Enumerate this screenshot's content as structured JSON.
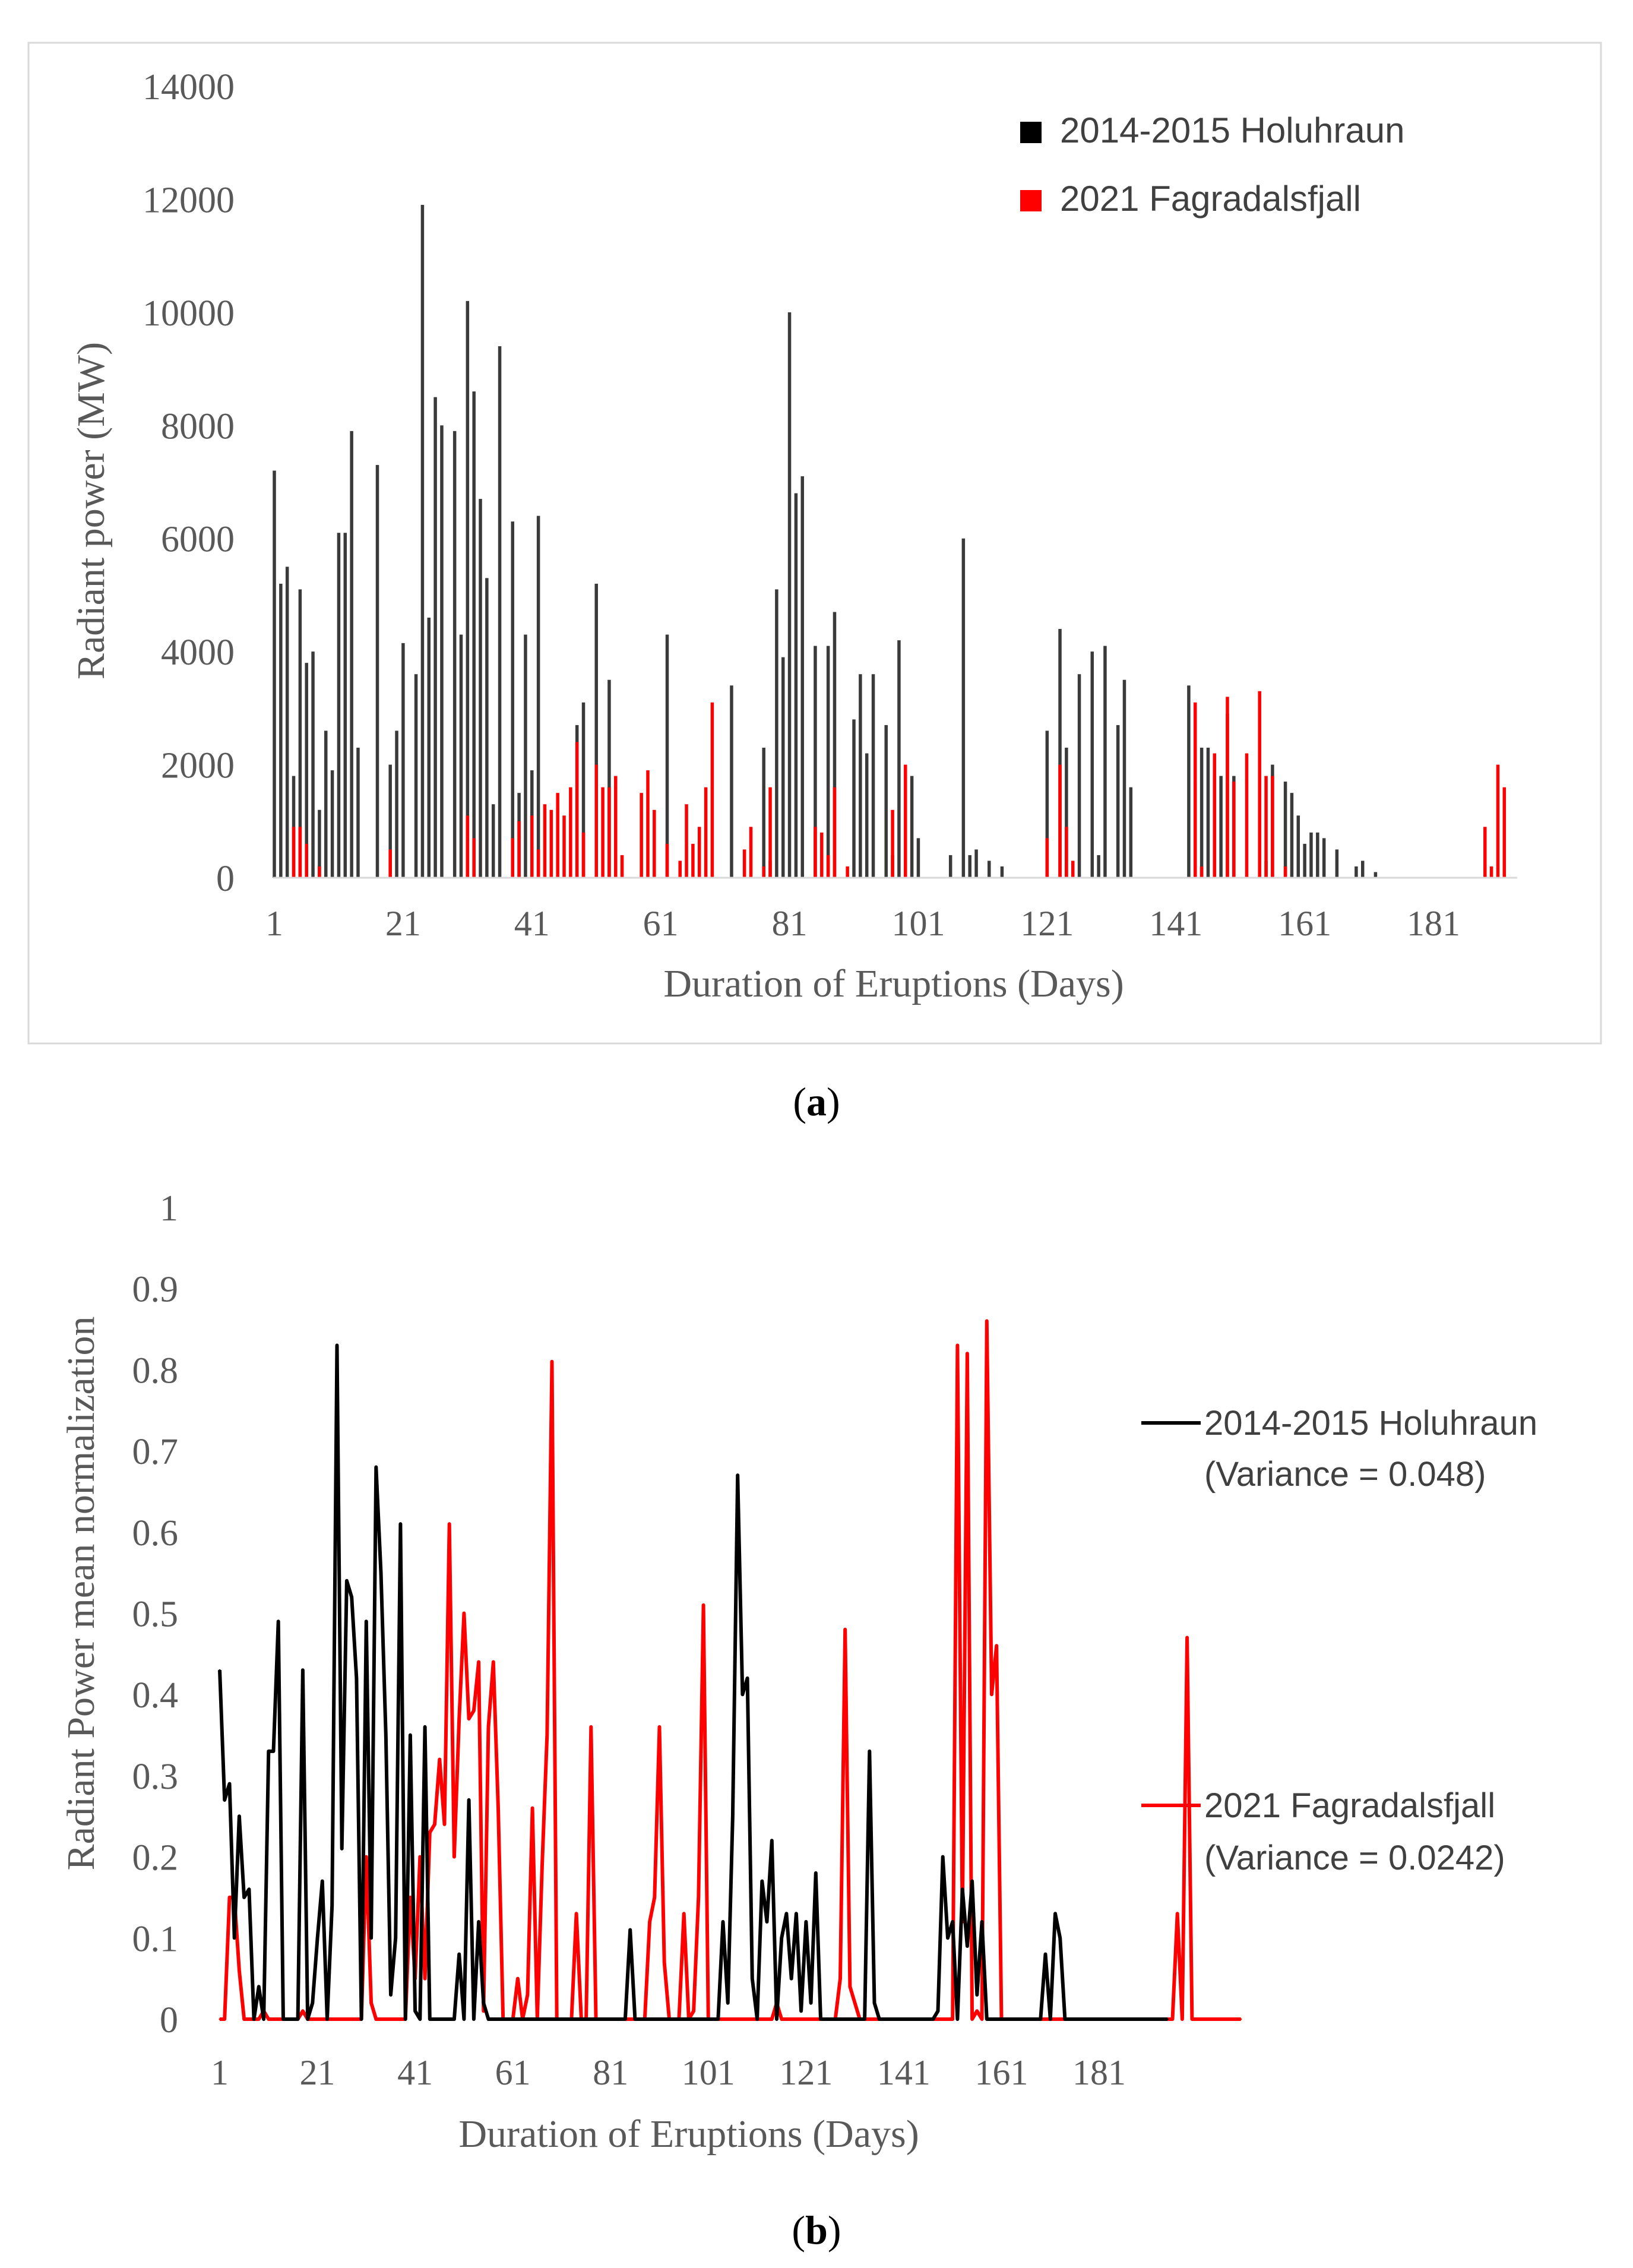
{
  "panel_labels": {
    "a": "a",
    "b": "b"
  },
  "colors": {
    "holuhraun_bar": "#3a3a3a",
    "holuhraun_line": "#000000",
    "fagradalsfjall": "#ff0000",
    "frame": "#d9d9d9"
  },
  "chart_data": [
    {
      "type": "bar",
      "title": "",
      "xlabel": "Duration of Eruptions (Days)",
      "ylabel": "Radiant  power (MW)",
      "ylim": [
        0,
        14000
      ],
      "yticks": [
        "0",
        "2000",
        "4000",
        "6000",
        "8000",
        "10000",
        "12000",
        "14000"
      ],
      "xticks": [
        "1",
        "21",
        "41",
        "61",
        "81",
        "101",
        "121",
        "141",
        "161",
        "181"
      ],
      "legend_position": "top-right",
      "x_days": 193,
      "series": [
        {
          "name": "2014-2015 Holuhraun",
          "values": [
            7200,
            5200,
            5500,
            1800,
            5100,
            3800,
            4000,
            1200,
            2600,
            1900,
            6100,
            6100,
            7900,
            2300,
            0,
            0,
            7300,
            0,
            2000,
            2600,
            4150,
            0,
            3600,
            11900,
            4600,
            8500,
            8000,
            0,
            7900,
            4300,
            10200,
            8600,
            6700,
            5300,
            1300,
            9400,
            0,
            6300,
            1500,
            4300,
            1900,
            6400,
            0,
            0,
            0,
            0,
            0,
            2700,
            3100,
            0,
            5200,
            0,
            3500,
            0,
            0,
            0,
            0,
            0,
            0,
            0,
            0,
            4300,
            0,
            0,
            0,
            0,
            0,
            0,
            0,
            0,
            0,
            3400,
            0,
            0,
            0,
            0,
            2300,
            300,
            5100,
            3900,
            10000,
            6800,
            7100,
            0,
            4100,
            0,
            4100,
            4700,
            0,
            0,
            2800,
            3600,
            2200,
            3600,
            0,
            2700,
            400,
            4200,
            300,
            1800,
            700,
            0,
            0,
            0,
            0,
            400,
            0,
            6000,
            400,
            500,
            0,
            300,
            0,
            200,
            0,
            0,
            0,
            0,
            0,
            0,
            2600,
            0,
            4400,
            2300,
            0,
            3600,
            0,
            4000,
            400,
            4100,
            0,
            2700,
            3500,
            1600,
            0,
            0,
            0,
            0,
            0,
            0,
            0,
            0,
            3400,
            1700,
            2300,
            2300,
            1800,
            1800,
            2900,
            1800,
            0,
            0,
            0,
            0,
            300,
            2000,
            0,
            1700,
            1500,
            1100,
            600,
            800,
            800,
            700,
            0,
            500,
            0,
            0,
            200,
            300,
            0,
            100,
            0,
            0,
            0,
            0,
            0,
            0,
            0,
            0,
            0,
            0,
            0,
            0,
            0,
            0,
            0,
            0,
            0,
            0,
            0
          ]
        },
        {
          "name": "2021 Fagradalsfjall",
          "values": [
            0,
            0,
            0,
            900,
            900,
            600,
            0,
            200,
            0,
            0,
            0,
            0,
            0,
            0,
            0,
            0,
            0,
            0,
            500,
            0,
            0,
            0,
            0,
            0,
            0,
            0,
            0,
            0,
            0,
            0,
            1100,
            700,
            0,
            0,
            0,
            0,
            0,
            700,
            1000,
            0,
            1100,
            500,
            1300,
            1200,
            1500,
            1100,
            1600,
            2400,
            800,
            0,
            2000,
            1600,
            1600,
            1800,
            400,
            0,
            0,
            1500,
            1900,
            1200,
            0,
            600,
            0,
            300,
            1300,
            600,
            900,
            1600,
            3100,
            0,
            0,
            0,
            0,
            500,
            900,
            0,
            200,
            1600,
            0,
            0,
            0,
            0,
            0,
            0,
            900,
            800,
            400,
            1600,
            0,
            200,
            0,
            0,
            0,
            0,
            0,
            0,
            1200,
            0,
            2000,
            0,
            0,
            0,
            0,
            0,
            0,
            0,
            0,
            0,
            0,
            0,
            0,
            0,
            0,
            0,
            0,
            0,
            0,
            0,
            0,
            0,
            700,
            0,
            2000,
            900,
            300,
            0,
            0,
            0,
            0,
            0,
            0,
            0,
            0,
            0,
            0,
            0,
            0,
            0,
            0,
            0,
            0,
            0,
            0,
            3100,
            200,
            0,
            2200,
            0,
            3200,
            1700,
            0,
            2200,
            0,
            3300,
            1800,
            1800,
            0,
            200,
            0,
            0,
            0,
            0,
            0,
            0,
            0,
            0,
            0,
            0,
            0,
            0,
            0,
            0,
            0,
            0,
            0,
            0,
            0,
            0,
            0,
            0,
            0,
            0,
            0,
            0,
            0,
            0,
            0,
            0,
            900,
            200,
            2000,
            1600,
            0,
            0,
            0,
            0,
            0,
            0,
            0,
            0,
            0,
            0
          ]
        }
      ]
    },
    {
      "type": "line",
      "title": "",
      "xlabel": "Duration of Eruptions (Days)",
      "ylabel": "Radiant  Power mean normalization",
      "ylim": [
        0,
        1
      ],
      "yticks": [
        "0",
        "0.1",
        "0.2",
        "0.3",
        "0.4",
        "0.5",
        "0.6",
        "0.7",
        "0.8",
        "0.9",
        "1"
      ],
      "xticks": [
        "1",
        "21",
        "41",
        "61",
        "81",
        "101",
        "121",
        "141",
        "161",
        "181"
      ],
      "legend_position": "right",
      "x_days": 193,
      "series": [
        {
          "name": "2014-2015 Holuhraun",
          "variance_label": "(Variance = 0.048)",
          "values": [
            0.43,
            0.27,
            0.29,
            0.1,
            0.25,
            0.15,
            0.16,
            0,
            0.04,
            0,
            0.33,
            0.33,
            0.49,
            0,
            0,
            0,
            0,
            0.43,
            0,
            0.02,
            0.1,
            0.17,
            0,
            0.14,
            0.83,
            0.21,
            0.54,
            0.52,
            0.42,
            0,
            0.49,
            0.1,
            0.68,
            0.55,
            0.35,
            0.03,
            0.1,
            0.61,
            0,
            0.35,
            0.01,
            0,
            0.36,
            0,
            0,
            0,
            0,
            0,
            0,
            0.08,
            0,
            0.27,
            0,
            0.12,
            0.02,
            0,
            0,
            0,
            0,
            0,
            0,
            0,
            0,
            0,
            0,
            0,
            0,
            0,
            0,
            0,
            0,
            0,
            0,
            0,
            0,
            0,
            0,
            0,
            0,
            0,
            0,
            0,
            0,
            0,
            0.11,
            0,
            0,
            0,
            0,
            0,
            0,
            0,
            0,
            0,
            0,
            0,
            0,
            0,
            0,
            0,
            0,
            0,
            0,
            0.12,
            0.02,
            0.25,
            0.67,
            0.4,
            0.42,
            0.05,
            0,
            0.17,
            0.12,
            0.22,
            0,
            0.1,
            0.13,
            0.05,
            0.13,
            0.01,
            0.12,
            0.02,
            0.18,
            0,
            0,
            0,
            0,
            0,
            0,
            0,
            0,
            0,
            0,
            0.33,
            0.02,
            0,
            0,
            0,
            0,
            0,
            0,
            0,
            0,
            0,
            0,
            0,
            0,
            0.01,
            0.2,
            0.1,
            0.12,
            0,
            0.16,
            0.09,
            0.17,
            0.03,
            0.12,
            0,
            0,
            0,
            0,
            0,
            0,
            0,
            0,
            0,
            0,
            0,
            0,
            0.08,
            0,
            0.13,
            0.1,
            0,
            0,
            0,
            0,
            0,
            0,
            0,
            0,
            0,
            0,
            0,
            0,
            0,
            0,
            0,
            0,
            0,
            0,
            0,
            0,
            0,
            0
          ]
        },
        {
          "name": "2021 Fagradalsfjall",
          "variance_label": "(Variance = 0.0242)",
          "values": [
            0,
            0,
            0.15,
            0.15,
            0.06,
            0,
            0,
            0,
            0,
            0.01,
            0,
            0,
            0,
            0,
            0,
            0,
            0,
            0.01,
            0,
            0,
            0,
            0,
            0,
            0,
            0,
            0,
            0,
            0,
            0,
            0,
            0.2,
            0.02,
            0,
            0,
            0,
            0,
            0,
            0,
            0,
            0.15,
            0.05,
            0.2,
            0.05,
            0.23,
            0.24,
            0.32,
            0.24,
            0.61,
            0.2,
            0.37,
            0.5,
            0.37,
            0.38,
            0.44,
            0.01,
            0.36,
            0.44,
            0.26,
            0,
            0,
            0,
            0.05,
            0,
            0.03,
            0.26,
            0,
            0.19,
            0.35,
            0.81,
            0,
            0,
            0,
            0,
            0.13,
            0,
            0,
            0.36,
            0,
            0,
            0,
            0,
            0,
            0,
            0,
            0,
            0,
            0,
            0,
            0.12,
            0.15,
            0.36,
            0.07,
            0,
            0,
            0,
            0.13,
            0,
            0.01,
            0.15,
            0.51,
            0,
            0,
            0,
            0,
            0,
            0,
            0,
            0,
            0,
            0,
            0,
            0,
            0,
            0,
            0.02,
            0,
            0,
            0,
            0,
            0,
            0,
            0,
            0,
            0,
            0,
            0,
            0,
            0.05,
            0.48,
            0.04,
            0.02,
            0,
            0,
            0,
            0,
            0,
            0,
            0,
            0,
            0,
            0,
            0,
            0,
            0,
            0,
            0,
            0,
            0,
            0,
            0,
            0,
            0.83,
            0.12,
            0.82,
            0,
            0.01,
            0,
            0.86,
            0.4,
            0.46,
            0,
            0,
            0,
            0,
            0,
            0,
            0,
            0,
            0,
            0,
            0,
            0,
            0,
            0,
            0,
            0,
            0,
            0,
            0,
            0,
            0,
            0,
            0,
            0,
            0,
            0,
            0,
            0,
            0,
            0,
            0,
            0,
            0,
            0,
            0,
            0,
            0.13,
            0,
            0.47,
            0,
            0,
            0,
            0,
            0,
            0,
            0,
            0,
            0,
            0,
            0
          ]
        }
      ]
    }
  ]
}
